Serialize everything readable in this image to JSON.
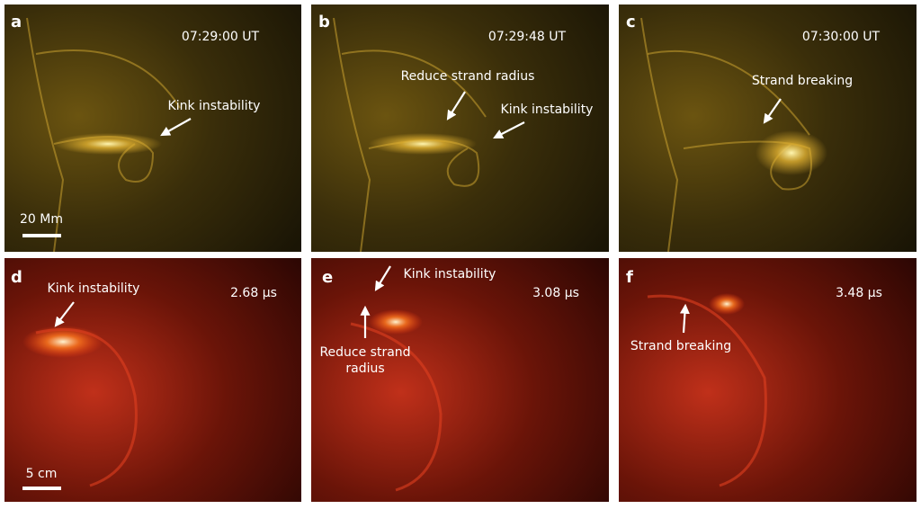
{
  "panels": [
    {
      "label": "a",
      "time": "07:29:00 UT",
      "annotations": [
        "Kink instability"
      ],
      "scale_bar": "20 Mm"
    },
    {
      "label": "b",
      "time": "07:29:48 UT",
      "annotations": [
        "Reduce strand radius",
        "Kink instability"
      ]
    },
    {
      "label": "c",
      "time": "07:30:00 UT",
      "annotations": [
        "Strand breaking"
      ]
    },
    {
      "label": "d",
      "time": "2.68 µs",
      "annotations": [
        "Kink instability"
      ],
      "scale_bar": "5 cm"
    },
    {
      "label": "e",
      "time": "3.08 µs",
      "annotations": [
        "Kink instability",
        [
          "Reduce strand",
          "radius"
        ]
      ]
    },
    {
      "label": "f",
      "time": "3.48 µs",
      "annotations": [
        "Strand breaking"
      ]
    }
  ]
}
